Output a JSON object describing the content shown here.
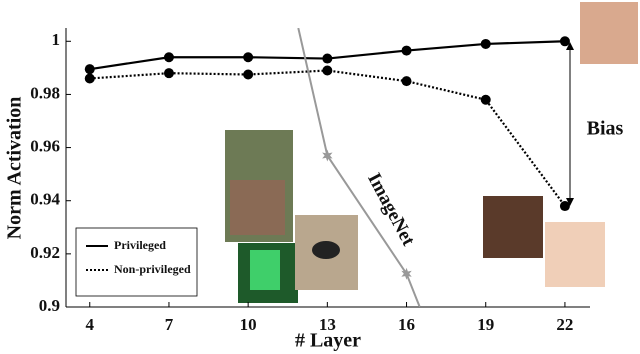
{
  "chart_data": {
    "type": "line",
    "x_label": "# Layer",
    "y_label": "Norm Activation",
    "xlim": [
      3.1,
      22.95
    ],
    "ylim": [
      0.9,
      1.005
    ],
    "xticks": [
      4,
      7,
      10,
      13,
      16,
      19,
      22
    ],
    "yticks": [
      0.9,
      0.92,
      0.94,
      0.96,
      0.98,
      1
    ],
    "series": [
      {
        "name": "Privileged",
        "color": "#000000",
        "style": "solid",
        "marker": "circle",
        "x": [
          4,
          7,
          10,
          13,
          16,
          19,
          22
        ],
        "values": [
          0.9895,
          0.994,
          0.994,
          0.9935,
          0.9965,
          0.999,
          1.0
        ]
      },
      {
        "name": "Non-privileged",
        "color": "#000000",
        "style": "dotted",
        "marker": "circle",
        "x": [
          4,
          7,
          10,
          13,
          16,
          19,
          22
        ],
        "values": [
          0.986,
          0.988,
          0.9875,
          0.989,
          0.985,
          0.978,
          0.938
        ]
      },
      {
        "color": "#999999",
        "style": "solid",
        "marker": "star",
        "marked": [
          false,
          true,
          true,
          false
        ],
        "x": [
          11.9,
          13,
          16,
          16.5
        ],
        "values": [
          1.005,
          0.957,
          0.9125,
          0.9
        ]
      }
    ],
    "annotations": [
      "ImageNet",
      "Bias"
    ]
  }
}
